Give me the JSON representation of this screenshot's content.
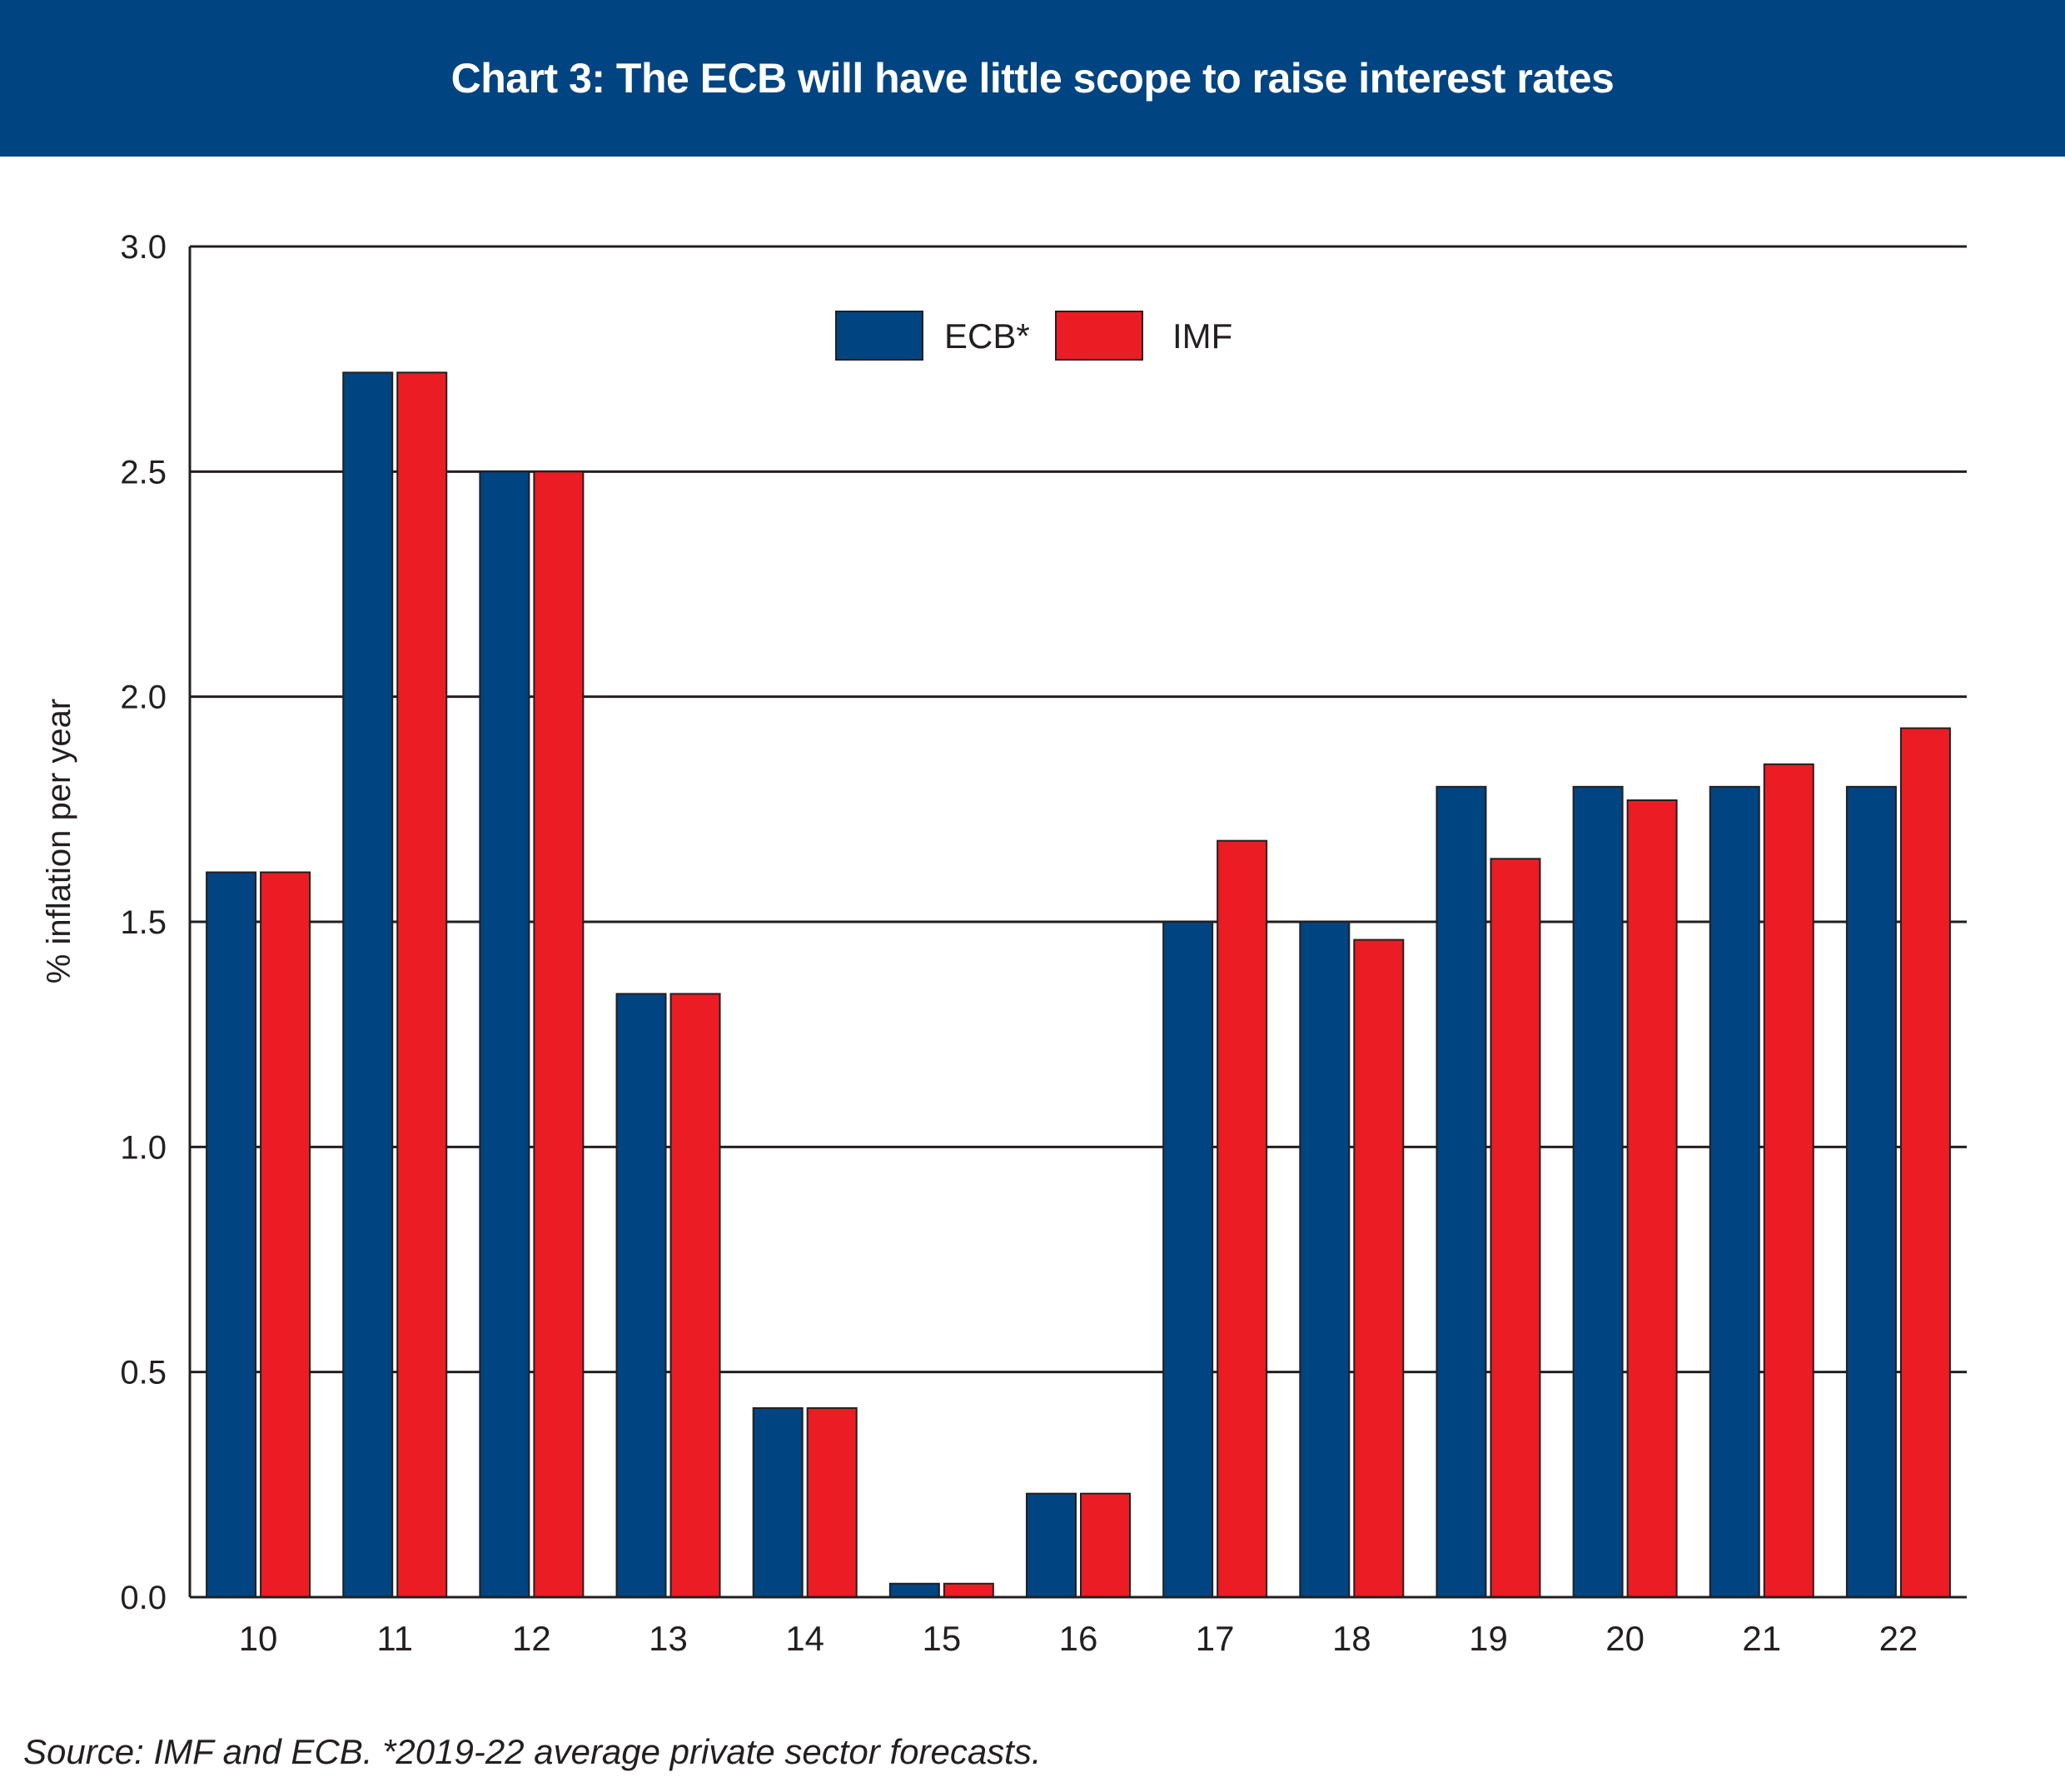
{
  "title": "Chart 3: The ECB will have little scope to raise interest rates",
  "source": "Source: IMF and ECB. *2019-22 average private sector forecasts.",
  "colors": {
    "header": "#004481",
    "ecb": "#004481",
    "imf": "#ec1c24",
    "text": "#231f20"
  },
  "chart_data": {
    "type": "bar",
    "categories": [
      "10",
      "11",
      "12",
      "13",
      "14",
      "15",
      "16",
      "17",
      "18",
      "19",
      "20",
      "21",
      "22"
    ],
    "series": [
      {
        "name": "ECB*",
        "values": [
          1.61,
          2.72,
          2.5,
          1.34,
          0.42,
          0.03,
          0.23,
          1.5,
          1.5,
          1.8,
          1.8,
          1.8,
          1.8
        ]
      },
      {
        "name": "IMF",
        "values": [
          1.61,
          2.72,
          2.5,
          1.34,
          0.42,
          0.03,
          0.23,
          1.68,
          1.46,
          1.64,
          1.77,
          1.85,
          1.93
        ]
      }
    ],
    "ylabel": "% inflation per year",
    "xlabel": "",
    "ylim": [
      0,
      3
    ],
    "yticks": [
      "0.0",
      "0.5",
      "1.0",
      "1.5",
      "2.0",
      "2.5",
      "3.0"
    ],
    "grid": true,
    "legend": "top-center"
  }
}
